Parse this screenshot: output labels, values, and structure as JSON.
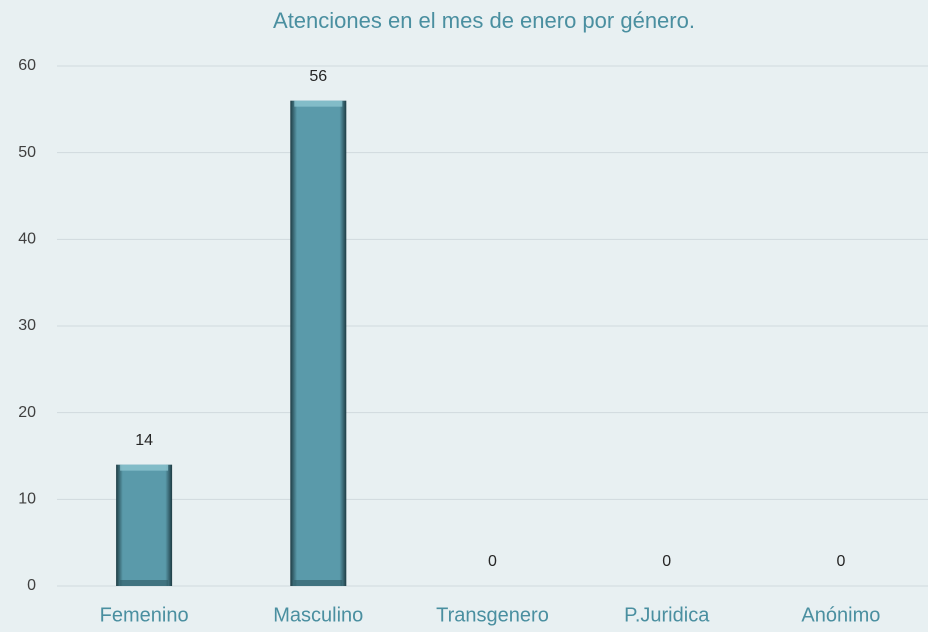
{
  "chart_data": {
    "type": "bar",
    "title": "Atenciones en el mes de enero por género.",
    "categories": [
      "Femenino",
      "Masculino",
      "Transgenero",
      "P.Juridica",
      "Anónimo"
    ],
    "values": [
      14,
      56,
      0,
      0,
      0
    ],
    "color": "#5a9aaa",
    "ylim": [
      0,
      60
    ],
    "yticks": [
      0,
      10,
      20,
      30,
      40,
      50,
      60
    ],
    "grid": true
  }
}
